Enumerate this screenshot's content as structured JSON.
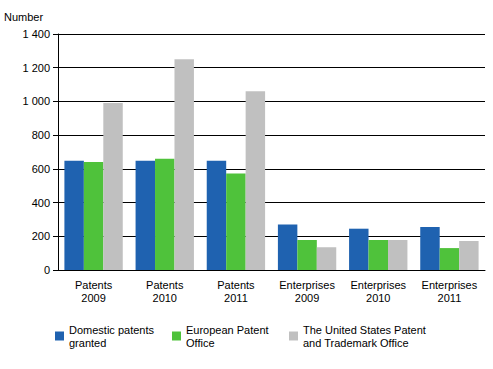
{
  "chart_data": {
    "type": "bar",
    "ylabel": "Number",
    "categories": [
      "Patents 2009",
      "Patents 2010",
      "Patents 2011",
      "Enterprises 2009",
      "Enterprises 2010",
      "Enterprises 2011"
    ],
    "series": [
      {
        "name": "Domestic patents granted",
        "color": "#1f62b0",
        "values": [
          648,
          648,
          648,
          270,
          245,
          255
        ]
      },
      {
        "name": "European Patent Office",
        "color": "#4fc23b",
        "values": [
          640,
          660,
          572,
          178,
          178,
          130
        ]
      },
      {
        "name": "The United States Patent and Trademark Office",
        "color": "#c0c0c0",
        "values": [
          990,
          1250,
          1060,
          135,
          178,
          172
        ]
      }
    ],
    "ylim": [
      0,
      1400
    ],
    "yticks": [
      0,
      200,
      400,
      600,
      800,
      {
        "value": 1000,
        "label": "1 000"
      },
      {
        "value": 1200,
        "label": "1 200"
      },
      {
        "value": 1400,
        "label": "1 400"
      }
    ],
    "grid": true,
    "legend": "bottom"
  }
}
